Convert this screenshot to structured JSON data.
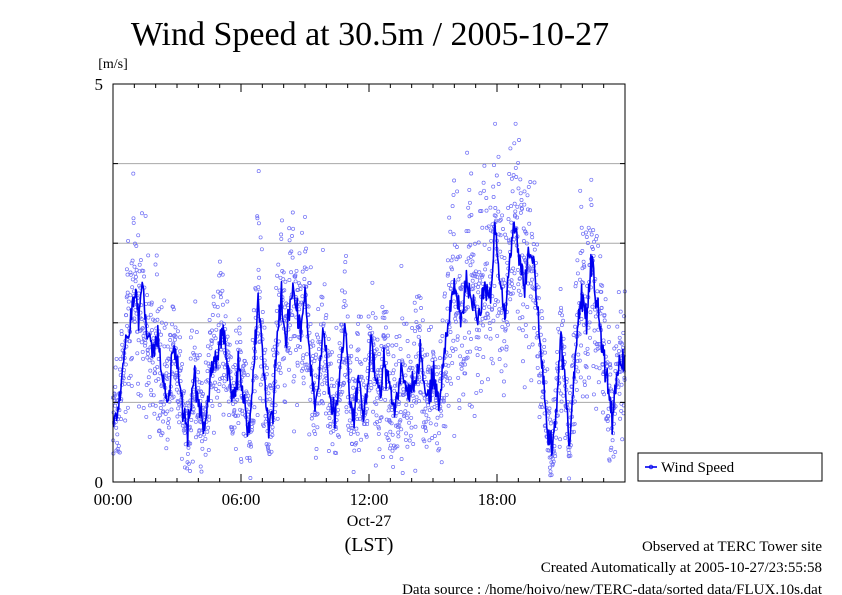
{
  "chart_data": {
    "type": "scatter",
    "title": "Wind Speed at 30.5m / 2005-10-27",
    "ylabel": "[m/s]",
    "xlabel": "(LST)",
    "ylim": [
      0,
      5
    ],
    "xlim_hours": [
      0,
      24
    ],
    "y_ticks": [
      "0",
      "5"
    ],
    "y_gridlines": [
      1,
      2,
      3,
      4
    ],
    "grid": "horizontal",
    "x_ticks": [
      {
        "hour": 0,
        "label": "00:00"
      },
      {
        "hour": 6,
        "label": "06:00"
      },
      {
        "hour": 12,
        "label": "12:00"
      },
      {
        "hour": 18,
        "label": "18:00"
      }
    ],
    "date_label": "Oct-27",
    "legend": {
      "position": "right-bottom",
      "entries": [
        "Wind Speed"
      ]
    },
    "series": [
      {
        "name": "Wind Speed",
        "color": "#0000ee",
        "scatter_color": "#6f6ff5",
        "mean_profile": [
          {
            "hour": 0.0,
            "value": 0.7
          },
          {
            "hour": 0.3,
            "value": 1.0
          },
          {
            "hour": 0.5,
            "value": 1.6
          },
          {
            "hour": 0.8,
            "value": 2.0
          },
          {
            "hour": 1.0,
            "value": 2.4
          },
          {
            "hour": 1.2,
            "value": 2.1
          },
          {
            "hour": 1.4,
            "value": 2.5
          },
          {
            "hour": 1.6,
            "value": 1.9
          },
          {
            "hour": 1.9,
            "value": 1.6
          },
          {
            "hour": 2.1,
            "value": 1.9
          },
          {
            "hour": 2.3,
            "value": 1.3
          },
          {
            "hour": 2.6,
            "value": 1.0
          },
          {
            "hour": 2.8,
            "value": 1.7
          },
          {
            "hour": 3.0,
            "value": 1.5
          },
          {
            "hour": 3.3,
            "value": 0.8
          },
          {
            "hour": 3.5,
            "value": 0.6
          },
          {
            "hour": 3.8,
            "value": 1.3
          },
          {
            "hour": 4.0,
            "value": 1.0
          },
          {
            "hour": 4.3,
            "value": 0.7
          },
          {
            "hour": 4.6,
            "value": 1.4
          },
          {
            "hour": 4.9,
            "value": 1.6
          },
          {
            "hour": 5.1,
            "value": 2.0
          },
          {
            "hour": 5.4,
            "value": 1.4
          },
          {
            "hour": 5.6,
            "value": 1.0
          },
          {
            "hour": 5.9,
            "value": 1.5
          },
          {
            "hour": 6.1,
            "value": 1.1
          },
          {
            "hour": 6.4,
            "value": 0.6
          },
          {
            "hour": 6.6,
            "value": 1.4
          },
          {
            "hour": 6.8,
            "value": 2.3
          },
          {
            "hour": 7.0,
            "value": 1.6
          },
          {
            "hour": 7.3,
            "value": 0.7
          },
          {
            "hour": 7.5,
            "value": 0.9
          },
          {
            "hour": 7.7,
            "value": 1.8
          },
          {
            "hour": 7.9,
            "value": 2.3
          },
          {
            "hour": 8.1,
            "value": 1.7
          },
          {
            "hour": 8.4,
            "value": 2.5
          },
          {
            "hour": 8.6,
            "value": 2.2
          },
          {
            "hour": 8.8,
            "value": 1.9
          },
          {
            "hour": 9.0,
            "value": 2.4
          },
          {
            "hour": 9.2,
            "value": 1.6
          },
          {
            "hour": 9.5,
            "value": 0.9
          },
          {
            "hour": 9.7,
            "value": 1.5
          },
          {
            "hour": 9.9,
            "value": 1.9
          },
          {
            "hour": 10.1,
            "value": 1.2
          },
          {
            "hour": 10.4,
            "value": 0.8
          },
          {
            "hour": 10.6,
            "value": 1.3
          },
          {
            "hour": 10.9,
            "value": 2.0
          },
          {
            "hour": 11.1,
            "value": 1.1
          },
          {
            "hour": 11.3,
            "value": 0.8
          },
          {
            "hour": 11.5,
            "value": 1.4
          },
          {
            "hour": 11.7,
            "value": 0.9
          },
          {
            "hour": 11.9,
            "value": 1.0
          },
          {
            "hour": 12.1,
            "value": 1.8
          },
          {
            "hour": 12.3,
            "value": 1.3
          },
          {
            "hour": 12.5,
            "value": 1.1
          },
          {
            "hour": 12.7,
            "value": 1.5
          },
          {
            "hour": 12.9,
            "value": 1.2
          },
          {
            "hour": 13.2,
            "value": 0.9
          },
          {
            "hour": 13.5,
            "value": 1.4
          },
          {
            "hour": 13.8,
            "value": 1.1
          },
          {
            "hour": 14.1,
            "value": 1.2
          },
          {
            "hour": 14.4,
            "value": 1.6
          },
          {
            "hour": 14.7,
            "value": 1.0
          },
          {
            "hour": 15.0,
            "value": 1.3
          },
          {
            "hour": 15.3,
            "value": 1.0
          },
          {
            "hour": 15.5,
            "value": 1.6
          },
          {
            "hour": 15.8,
            "value": 2.2
          },
          {
            "hour": 16.0,
            "value": 2.5
          },
          {
            "hour": 16.3,
            "value": 2.0
          },
          {
            "hour": 16.6,
            "value": 2.6
          },
          {
            "hour": 16.9,
            "value": 2.2
          },
          {
            "hour": 17.1,
            "value": 2.0
          },
          {
            "hour": 17.4,
            "value": 2.5
          },
          {
            "hour": 17.7,
            "value": 2.3
          },
          {
            "hour": 17.9,
            "value": 3.2
          },
          {
            "hour": 18.1,
            "value": 2.6
          },
          {
            "hour": 18.4,
            "value": 2.1
          },
          {
            "hour": 18.6,
            "value": 2.8
          },
          {
            "hour": 18.8,
            "value": 3.3
          },
          {
            "hour": 19.0,
            "value": 2.9
          },
          {
            "hour": 19.3,
            "value": 2.4
          },
          {
            "hour": 19.5,
            "value": 2.9
          },
          {
            "hour": 19.8,
            "value": 2.6
          },
          {
            "hour": 20.0,
            "value": 1.8
          },
          {
            "hour": 20.2,
            "value": 1.2
          },
          {
            "hour": 20.4,
            "value": 0.5
          },
          {
            "hour": 20.6,
            "value": 0.4
          },
          {
            "hour": 20.8,
            "value": 1.0
          },
          {
            "hour": 21.0,
            "value": 1.9
          },
          {
            "hour": 21.2,
            "value": 1.1
          },
          {
            "hour": 21.4,
            "value": 0.5
          },
          {
            "hour": 21.6,
            "value": 1.2
          },
          {
            "hour": 21.8,
            "value": 2.0
          },
          {
            "hour": 22.0,
            "value": 2.4
          },
          {
            "hour": 22.2,
            "value": 2.0
          },
          {
            "hour": 22.4,
            "value": 2.8
          },
          {
            "hour": 22.6,
            "value": 2.4
          },
          {
            "hour": 22.8,
            "value": 2.0
          },
          {
            "hour": 23.0,
            "value": 1.6
          },
          {
            "hour": 23.2,
            "value": 1.2
          },
          {
            "hour": 23.4,
            "value": 0.8
          },
          {
            "hour": 23.6,
            "value": 1.3
          },
          {
            "hour": 23.8,
            "value": 1.5
          }
        ]
      }
    ]
  },
  "footer": {
    "site": "Observed at TERC Tower site",
    "created": "Created Automatically at 2005-10-27/23:55:58",
    "source": "Data source : /home/hoivo/new/TERC-data/sorted  data/FLUX.10s.dat"
  }
}
